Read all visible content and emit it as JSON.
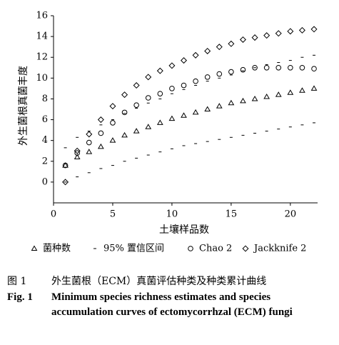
{
  "chart_data": {
    "type": "scatter",
    "xlabel": "土壤样品数",
    "ylabel": "外生菌根真菌丰度",
    "xlim": [
      0,
      22.3
    ],
    "xticks": [
      0,
      5,
      10,
      15,
      20
    ],
    "ylim": [
      -2,
      16
    ],
    "yticks": [
      0,
      2,
      4,
      6,
      8,
      10,
      12,
      14,
      16
    ],
    "x": [
      1,
      2,
      3,
      4,
      5,
      6,
      7,
      8,
      9,
      10,
      11,
      12,
      13,
      14,
      15,
      16,
      17,
      18,
      19,
      20,
      21,
      22
    ],
    "series": [
      {
        "name": "菌种数",
        "color": "#000000",
        "marker": "triangle",
        "values": [
          1.6,
          2.4,
          2.9,
          3.4,
          4.0,
          4.5,
          4.9,
          5.3,
          5.7,
          6.1,
          6.4,
          6.7,
          7.0,
          7.3,
          7.6,
          7.8,
          8.0,
          8.2,
          8.4,
          8.6,
          8.8,
          9.0
        ]
      },
      {
        "name": "95% 置信区间",
        "color": "#000000",
        "marker": "dash",
        "values": [
          0.0,
          0.5,
          0.9,
          1.3,
          1.6,
          2.0,
          2.3,
          2.6,
          2.9,
          3.2,
          3.5,
          3.7,
          3.9,
          4.1,
          4.3,
          4.5,
          4.7,
          4.9,
          5.1,
          5.3,
          5.5,
          5.7
        ],
        "upper": [
          3.3,
          4.3,
          4.9,
          5.5,
          6.0,
          6.6,
          7.1,
          7.6,
          8.0,
          8.5,
          8.9,
          9.3,
          9.7,
          10.0,
          10.3,
          10.7,
          11.0,
          11.3,
          11.5,
          11.7,
          12.0,
          12.2
        ]
      },
      {
        "name": "Chao 2",
        "color": "#000000",
        "marker": "circle",
        "values": [
          1.6,
          2.8,
          3.8,
          4.7,
          5.7,
          6.7,
          7.4,
          8.1,
          8.5,
          9.0,
          9.3,
          9.7,
          10.1,
          10.4,
          10.6,
          10.8,
          11.0,
          11.0,
          11.0,
          11.0,
          11.0,
          10.9
        ]
      },
      {
        "name": "Jackknife 2",
        "color": "#000000",
        "marker": "diamond",
        "values": [
          0.0,
          3.0,
          4.6,
          6.0,
          7.3,
          8.4,
          9.3,
          10.1,
          10.7,
          11.2,
          11.7,
          12.2,
          12.6,
          13.0,
          13.3,
          13.7,
          13.9,
          14.1,
          14.3,
          14.5,
          14.6,
          14.7
        ]
      }
    ]
  },
  "caption": {
    "cn_label": "图 1",
    "cn_text": "外生菌根（ECM）真菌评估种类及种类累计曲线",
    "en_label": "Fig. 1",
    "en_text": "Minimum species richness estimates and species accumulation curves of ectomycorrhzal (ECM) fungi"
  }
}
